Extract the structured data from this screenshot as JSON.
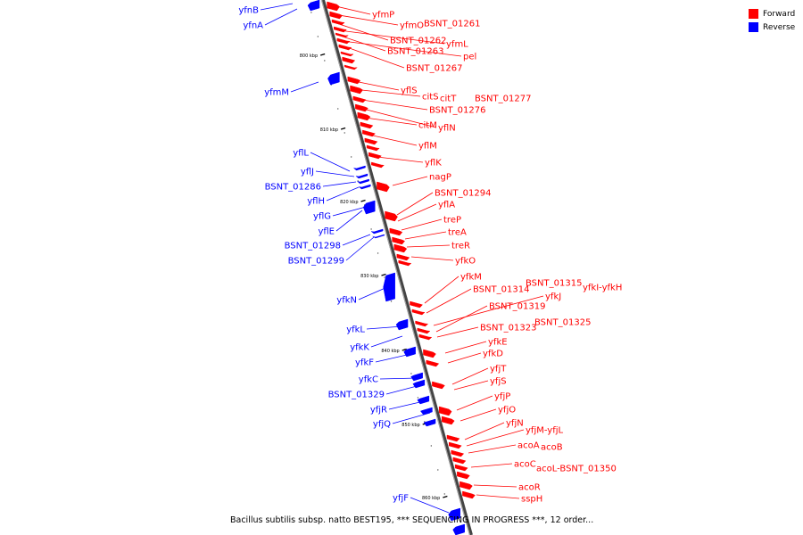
{
  "legend": [
    {
      "label": "Forward",
      "color": "#ff0000"
    },
    {
      "label": "Reverse",
      "color": "#0000ff"
    }
  ],
  "caption": "Bacillus subtilis subsp. natto BEST195, *** SEQUENCING IN PROGRESS ***, 12 order...",
  "ticks": [
    "800 kbp",
    "810 kbp",
    "820 kbp",
    "830 kbp",
    "840 kbp",
    "850 kbp",
    "860 kbp"
  ],
  "genes": {
    "forward": [
      "yfmP",
      "yfmO",
      "BSNT_01261",
      "BSNT_01262",
      "yfmL",
      "BSNT_01263",
      "pel",
      "BSNT_01267",
      "yflS",
      "citS",
      "citT",
      "BSNT_01277",
      "BSNT_01276",
      "yflN",
      "citM",
      "yflM",
      "yflK",
      "nagP",
      "BSNT_01294",
      "yflA",
      "treP",
      "treA",
      "treR",
      "yfkO",
      "yfkM",
      "BSNT_01314",
      "BSNT_01315",
      "yfkI-yfkH",
      "yfkJ",
      "BSNT_01319",
      "BSNT_01323",
      "BSNT_01325",
      "yfkE",
      "yfkD",
      "yfjT",
      "yfjS",
      "yfjP",
      "yfjO",
      "yfjN",
      "yfjM-yfjL",
      "acoA",
      "acoB",
      "acoC",
      "acoL-BSNT_01350",
      "acoR",
      "sspH"
    ],
    "reverse": [
      "yfnB",
      "yfnA",
      "yfmM",
      "yflL",
      "yflJ",
      "BSNT_01286",
      "yflH",
      "yflG",
      "yflE",
      "BSNT_01298",
      "BSNT_01299",
      "yfkN",
      "yfkL",
      "yfkK",
      "yfkF",
      "yfkC",
      "BSNT_01329",
      "yfjR",
      "yfjQ",
      "yfjF"
    ]
  }
}
